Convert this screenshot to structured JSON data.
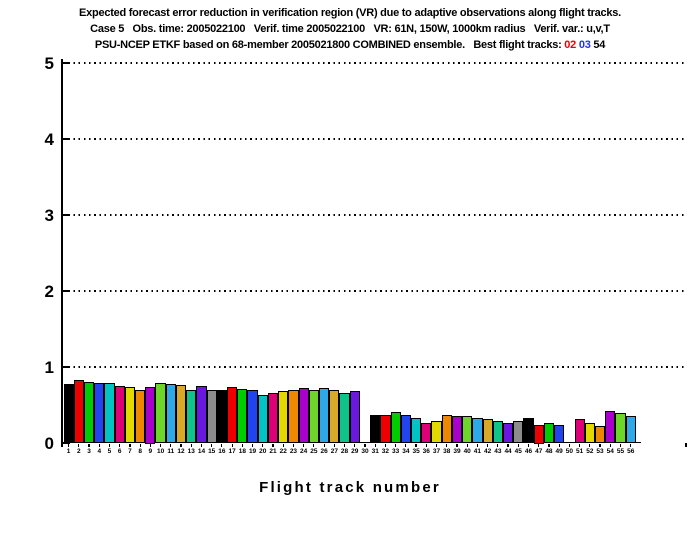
{
  "header": {
    "line1": "Expected forecast error reduction in verification region (VR) due to adaptive observations along flight tracks.",
    "line2": "Case 5   Obs. time: 2005022100   Verif. time 2005022100   VR: 61N, 150W, 1000km radius   Verif. var.: u,v,T",
    "line3_main": "PSU-NCEP ETKF based on 68-member 2005021800 COMBINED ensemble.   Best flight tracks: "
  },
  "chart_data": {
    "type": "bar",
    "title": "Expected forecast error reduction in verification region (VR) due to adaptive observations along flight tracks.",
    "subtitle_lines": [
      "Case 5   Obs. time: 2005022100   Verif. time 2005022100   VR: 61N, 150W, 1000km radius   Verif. var.: u,v,T",
      "PSU-NCEP ETKF based on 68-member 2005021800 COMBINED ensemble.   Best flight tracks: 02 03 54"
    ],
    "best_tracks": [
      {
        "label": "02",
        "color": "#ee0000"
      },
      {
        "label": "03",
        "color": "#2233ee"
      },
      {
        "label": "54",
        "color": "#000000"
      }
    ],
    "xlabel": "Flight track number",
    "ylabel": "",
    "ylim": [
      0,
      5
    ],
    "yticks": [
      0,
      1,
      2,
      3,
      4,
      5
    ],
    "gridlines": [
      1,
      2,
      3,
      4,
      5
    ],
    "grid_style": "dotted",
    "legend": "none",
    "tracks": [
      1,
      2,
      3,
      4,
      5,
      6,
      7,
      8,
      9,
      10,
      11,
      12,
      13,
      14,
      15,
      16,
      17,
      18,
      19,
      20,
      21,
      22,
      23,
      24,
      25,
      26,
      27,
      28,
      29,
      30,
      31,
      32,
      33,
      34,
      35,
      36,
      37,
      38,
      39,
      40,
      41,
      42,
      43,
      44,
      45,
      46,
      47,
      48,
      49,
      50,
      51,
      52,
      53,
      54,
      55,
      56
    ],
    "values": [
      0.78,
      0.84,
      0.81,
      0.8,
      0.8,
      0.76,
      0.74,
      0.71,
      0.75,
      0.79,
      0.78,
      0.77,
      0.7,
      0.76,
      0.7,
      0.7,
      0.74,
      0.72,
      0.7,
      0.64,
      0.67,
      0.69,
      0.7,
      0.73,
      0.71,
      0.73,
      0.71,
      0.67,
      0.69,
      null,
      0.37,
      0.38,
      0.41,
      0.37,
      0.33,
      0.27,
      0.29,
      0.38,
      0.36,
      0.36,
      0.33,
      0.32,
      0.29,
      0.27,
      0.3,
      0.34,
      0.25,
      0.27,
      0.24,
      null,
      0.32,
      0.27,
      0.23,
      0.43,
      0.4,
      0.36
    ],
    "palette": [
      "#000000",
      "#ee0000",
      "#00cc00",
      "#2244ee",
      "#00c3c3",
      "#dd0077",
      "#e3d800",
      "#ee8800",
      "#aa00cc",
      "#6ed62a",
      "#2fa8e8",
      "#d8a828",
      "#10c388",
      "#6a18e0",
      "#8c8c8c"
    ],
    "color_rule": "bar color = palette[(track-1) % 15]; tracks 30 and 50 have no bar"
  }
}
